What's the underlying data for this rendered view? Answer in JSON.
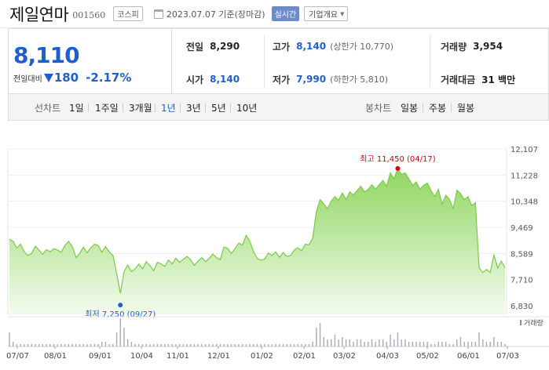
{
  "header": {
    "name": "제일연마",
    "code": "001560",
    "market": "코스피",
    "date": "2023.07.07 기준(장마감)",
    "live": "실시간",
    "company_overview": "기업개요"
  },
  "price": {
    "current": "8,110",
    "change_label": "전일대비",
    "change": "180",
    "change_pct": "-2.17%",
    "direction": "down",
    "color_down": "#1f5fc9",
    "color_up": "#d2000f"
  },
  "stats": {
    "prev_close": {
      "label": "전일",
      "value": "8,290"
    },
    "high": {
      "label": "고가",
      "value": "8,140",
      "sub": "(상한가 10,770)"
    },
    "volume": {
      "label": "거래량",
      "value": "3,954"
    },
    "open": {
      "label": "시가",
      "value": "8,140"
    },
    "low": {
      "label": "저가",
      "value": "7,990",
      "sub": "(하한가 5,810)"
    },
    "turnover": {
      "label": "거래대금",
      "value": "31 백만"
    }
  },
  "period": {
    "label": "선차트",
    "items": [
      "1일",
      "1주일",
      "3개월",
      "1년",
      "3년",
      "5년",
      "10년"
    ],
    "active": "1년",
    "candle_label": "봉차트",
    "candle_items": [
      "일봉",
      "주봉",
      "월봉"
    ]
  },
  "chart_data": {
    "type": "area",
    "ylim": [
      6830,
      12107
    ],
    "y_ticks": [
      "12,107",
      "11,228",
      "10,348",
      "9,469",
      "8,589",
      "7,710",
      "6,830"
    ],
    "x_ticks": [
      "07/07",
      "08/01",
      "09/01",
      "10/04",
      "11/01",
      "12/01",
      "01/02",
      "02/01",
      "03/02",
      "04/03",
      "05/02",
      "06/01",
      "07/03"
    ],
    "high_annotation": "최고 11,450 (04/17)",
    "low_annotation": "최저 7,250 (09/27)",
    "volume_legend": "거래량",
    "series": [
      {
        "values": [
          9070,
          9000,
          8770,
          8900,
          8650,
          8520,
          8590,
          8830,
          8700,
          8560,
          8720,
          8640,
          8750,
          8700,
          8630,
          8850,
          9000,
          8820,
          8450,
          8590,
          8800,
          8610,
          8780,
          8900,
          8860,
          8630,
          8820,
          8640,
          8520,
          7900,
          7250,
          7980,
          8200,
          7980,
          8070,
          8230,
          8070,
          8310,
          8180,
          8010,
          8290,
          8240,
          8150,
          8370,
          8240,
          8430,
          8290,
          8390,
          8490,
          8380,
          8190,
          8330,
          8450,
          8310,
          8430,
          8570,
          8450,
          8380,
          8810,
          8760,
          8590,
          8750,
          8940,
          8870,
          9200,
          9000,
          8650,
          8420,
          8360,
          8400,
          8600,
          8520,
          8640,
          8460,
          8620,
          8490,
          8520,
          8700,
          8780,
          8680,
          8900,
          8880,
          9100,
          10000,
          10400,
          10250,
          10100,
          10350,
          10500,
          10380,
          10630,
          10400,
          10660,
          10560,
          10700,
          10850,
          10660,
          10740,
          10900,
          10760,
          10900,
          11050,
          10850,
          11300,
          11100,
          11450,
          11250,
          11300,
          11100,
          10880,
          11000,
          10750,
          10880,
          10960,
          10700,
          10500,
          10750,
          10250,
          10550,
          10400,
          10100,
          10720,
          10600,
          10400,
          10500,
          10200,
          10300,
          8100,
          7950,
          8050,
          7950,
          8550,
          8100,
          8330,
          8110
        ],
        "volumes": [
          6,
          2,
          1,
          1,
          1,
          1,
          1,
          1,
          1,
          1,
          1,
          1,
          1,
          1,
          1,
          1,
          1,
          1,
          1,
          1,
          1,
          1,
          1,
          1,
          1,
          2,
          2,
          1,
          1,
          6,
          12,
          8,
          3,
          2,
          1,
          1,
          1,
          1,
          1,
          1,
          1,
          1,
          1,
          1,
          1,
          1,
          1,
          1,
          1,
          1,
          1,
          1,
          1,
          1,
          1,
          1,
          1,
          1,
          1,
          1,
          1,
          1,
          1,
          1,
          1,
          1,
          1,
          1,
          1,
          1,
          1,
          1,
          1,
          1,
          1,
          1,
          1,
          1,
          1,
          1,
          1,
          1,
          2,
          8,
          10,
          4,
          3,
          3,
          5,
          3,
          4,
          3,
          3,
          2,
          3,
          3,
          2,
          2,
          3,
          2,
          3,
          3,
          2,
          5,
          3,
          6,
          3,
          3,
          2,
          2,
          2,
          2,
          2,
          2,
          1,
          1,
          2,
          2,
          2,
          1,
          1,
          3,
          4,
          2,
          2,
          2,
          2,
          6,
          3,
          2,
          2,
          4,
          2,
          2,
          1
        ]
      }
    ],
    "line_color": "#7cc94a",
    "fill_top_color": "#8fd65f",
    "fill_bottom_color": "#f3fbee"
  }
}
